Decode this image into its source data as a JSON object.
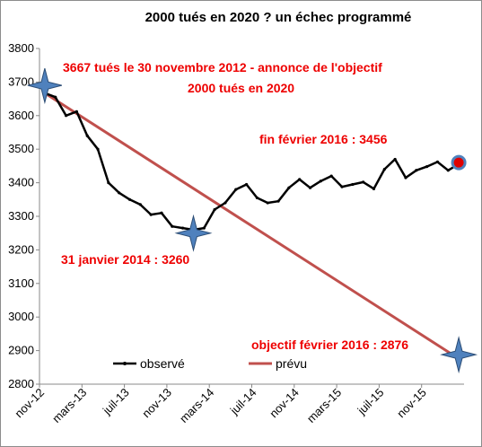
{
  "chart_data": {
    "type": "line",
    "title": "2000 tués en 2020 ? un échec programmé",
    "xlabel": "",
    "ylabel": "",
    "ylim": [
      2800,
      3800
    ],
    "yticks": [
      2800,
      2900,
      3000,
      3100,
      3200,
      3300,
      3400,
      3500,
      3600,
      3700,
      3800
    ],
    "grid": false,
    "legend_position": "bottom-left",
    "x_tick_labels": [
      {
        "label": "nov-12",
        "index": 0
      },
      {
        "label": "mars-13",
        "index": 4
      },
      {
        "label": "juil-13",
        "index": 8
      },
      {
        "label": "nov-13",
        "index": 12
      },
      {
        "label": "mars-14",
        "index": 16
      },
      {
        "label": "juil-14",
        "index": 20
      },
      {
        "label": "nov-14",
        "index": 24
      },
      {
        "label": "mars-15",
        "index": 28
      },
      {
        "label": "juil-15",
        "index": 32
      },
      {
        "label": "nov-15",
        "index": 36
      }
    ],
    "x_count": 40,
    "series": [
      {
        "name": "observé",
        "color": "#000000",
        "values": [
          3667,
          3655,
          3600,
          3612,
          3540,
          3500,
          3400,
          3370,
          3350,
          3335,
          3305,
          3310,
          3270,
          3265,
          3260,
          3265,
          3320,
          3340,
          3380,
          3395,
          3355,
          3340,
          3345,
          3385,
          3410,
          3385,
          3405,
          3420,
          3388,
          3395,
          3402,
          3382,
          3440,
          3470,
          3415,
          3437,
          3448,
          3462,
          3437,
          3456
        ]
      },
      {
        "name": "prévu",
        "color": "#c0504d",
        "start": {
          "index": 0,
          "value": 3667
        },
        "end": {
          "index": 39,
          "value": 2876
        }
      }
    ],
    "markers": [
      {
        "name": "star-start",
        "index": 0,
        "value": 3690,
        "shape": "star",
        "color": "#4f81bd"
      },
      {
        "name": "star-jan-2014",
        "index": 14,
        "value": 3250,
        "shape": "star",
        "color": "#4f81bd"
      },
      {
        "name": "star-objective",
        "index": 39,
        "value": 2888,
        "shape": "star",
        "color": "#4f81bd"
      },
      {
        "name": "dot-feb-2016",
        "index": 39,
        "value": 3460,
        "shape": "circle",
        "color": "#e00000",
        "stroke": "#4f81bd"
      }
    ],
    "annotations": [
      "3667 tués  le 30 novembre 2012 - annonce de l'objectif",
      "2000 tués en 2020",
      "fin février 2016 : 3456",
      "31 janvier 2014 : 3260",
      "objectif  février 2016 : 2876"
    ]
  }
}
